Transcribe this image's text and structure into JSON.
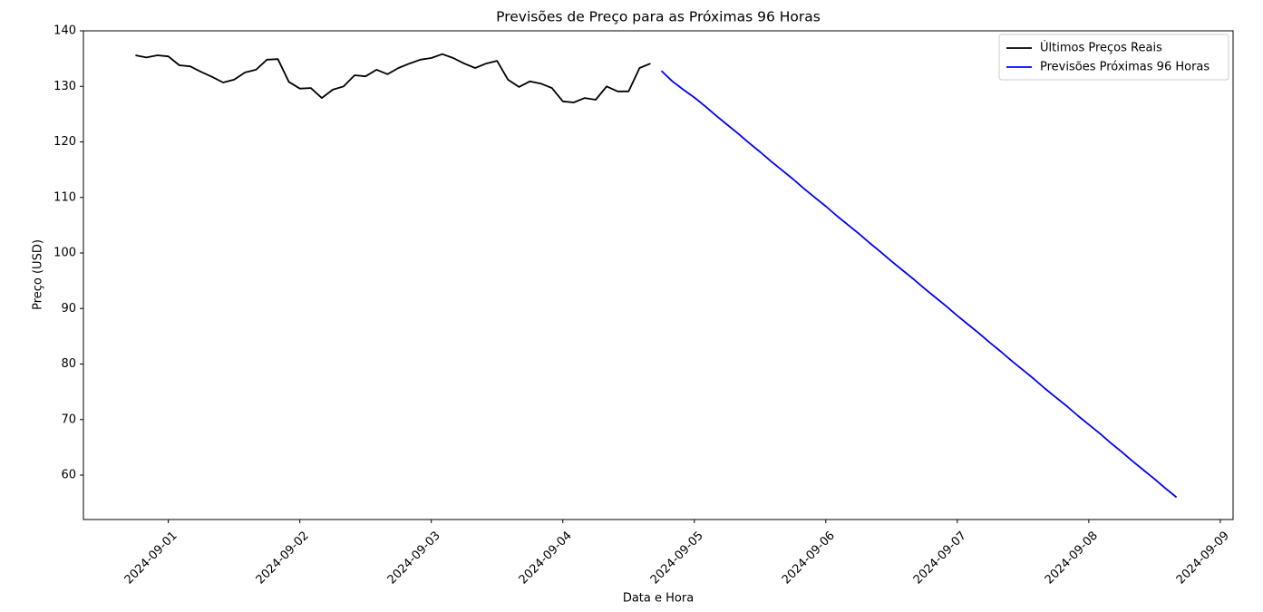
{
  "chart_data": {
    "type": "line",
    "title": "Previsões de Preço para as Próximas 96 Horas",
    "x_label": "Data e Hora",
    "y_label": "Preço (USD)",
    "series": [
      {
        "name": "Últimos Preços Reais",
        "color": "#000000",
        "x": [
          "2024-08-31T18:00",
          "2024-08-31T20:00",
          "2024-08-31T22:00",
          "2024-09-01T00:00",
          "2024-09-01T02:00",
          "2024-09-01T04:00",
          "2024-09-01T06:00",
          "2024-09-01T08:00",
          "2024-09-01T10:00",
          "2024-09-01T12:00",
          "2024-09-01T14:00",
          "2024-09-01T16:00",
          "2024-09-01T18:00",
          "2024-09-01T20:00",
          "2024-09-01T22:00",
          "2024-09-02T00:00",
          "2024-09-02T02:00",
          "2024-09-02T04:00",
          "2024-09-02T06:00",
          "2024-09-02T08:00",
          "2024-09-02T10:00",
          "2024-09-02T12:00",
          "2024-09-02T14:00",
          "2024-09-02T16:00",
          "2024-09-02T18:00",
          "2024-09-02T20:00",
          "2024-09-02T22:00",
          "2024-09-03T00:00",
          "2024-09-03T02:00",
          "2024-09-03T04:00",
          "2024-09-03T06:00",
          "2024-09-03T08:00",
          "2024-09-03T10:00",
          "2024-09-03T12:00",
          "2024-09-03T14:00",
          "2024-09-03T16:00",
          "2024-09-03T18:00",
          "2024-09-03T20:00",
          "2024-09-03T22:00",
          "2024-09-04T00:00",
          "2024-09-04T02:00",
          "2024-09-04T04:00",
          "2024-09-04T06:00",
          "2024-09-04T08:00",
          "2024-09-04T10:00",
          "2024-09-04T12:00",
          "2024-09-04T14:00",
          "2024-09-04T16:00"
        ],
        "values": [
          135.6,
          135.2,
          135.6,
          135.4,
          133.8,
          133.6,
          132.6,
          131.7,
          130.7,
          131.2,
          132.5,
          133.0,
          134.8,
          134.9,
          130.8,
          129.6,
          129.7,
          127.9,
          129.4,
          130.0,
          132.0,
          131.8,
          133.0,
          132.2,
          133.3,
          134.1,
          134.8,
          135.1,
          135.8,
          135.1,
          134.1,
          133.3,
          134.1,
          134.6,
          131.2,
          129.9,
          130.9,
          130.5,
          129.7,
          127.3,
          127.1,
          127.9,
          127.6,
          130.0,
          129.1,
          129.1,
          133.3,
          134.1
        ]
      },
      {
        "name": "Previsões Próximas 96 Horas",
        "color": "#0000ff",
        "x": [
          "2024-09-04T18:00",
          "2024-09-04T20:00",
          "2024-09-04T22:00",
          "2024-09-05T00:00",
          "2024-09-05T02:00",
          "2024-09-05T04:00",
          "2024-09-05T06:00",
          "2024-09-05T08:00",
          "2024-09-05T10:00",
          "2024-09-05T12:00",
          "2024-09-05T14:00",
          "2024-09-05T16:00",
          "2024-09-05T18:00",
          "2024-09-05T20:00",
          "2024-09-05T22:00",
          "2024-09-06T00:00",
          "2024-09-06T02:00",
          "2024-09-06T04:00",
          "2024-09-06T06:00",
          "2024-09-06T08:00",
          "2024-09-06T10:00",
          "2024-09-06T12:00",
          "2024-09-06T14:00",
          "2024-09-06T16:00",
          "2024-09-06T18:00",
          "2024-09-06T20:00",
          "2024-09-06T22:00",
          "2024-09-07T00:00",
          "2024-09-07T02:00",
          "2024-09-07T04:00",
          "2024-09-07T06:00",
          "2024-09-07T08:00",
          "2024-09-07T10:00",
          "2024-09-07T12:00",
          "2024-09-07T14:00",
          "2024-09-07T16:00",
          "2024-09-07T18:00",
          "2024-09-07T20:00",
          "2024-09-07T22:00",
          "2024-09-08T00:00",
          "2024-09-08T02:00",
          "2024-09-08T04:00",
          "2024-09-08T06:00",
          "2024-09-08T08:00",
          "2024-09-08T10:00",
          "2024-09-08T12:00",
          "2024-09-08T14:00",
          "2024-09-08T16:00"
        ],
        "values": [
          132.8,
          130.9,
          129.4,
          128.0,
          126.4,
          124.7,
          123.1,
          121.5,
          119.8,
          118.2,
          116.5,
          114.9,
          113.3,
          111.6,
          110.0,
          108.4,
          106.7,
          105.1,
          103.5,
          101.8,
          100.2,
          98.5,
          96.9,
          95.3,
          93.6,
          92.0,
          90.4,
          88.7,
          87.1,
          85.5,
          83.8,
          82.2,
          80.5,
          78.9,
          77.3,
          75.6,
          74.0,
          72.4,
          70.7,
          69.1,
          67.5,
          65.8,
          64.2,
          62.5,
          60.9,
          59.3,
          57.6,
          56.0
        ]
      }
    ],
    "xlim": [
      "2024-08-31T08:30",
      "2024-09-09T02:20"
    ],
    "xticks": [
      "2024-09-01",
      "2024-09-02",
      "2024-09-03",
      "2024-09-04",
      "2024-09-05",
      "2024-09-06",
      "2024-09-07",
      "2024-09-08",
      "2024-09-09"
    ],
    "ylim": [
      52,
      140
    ],
    "yticks": [
      60,
      70,
      80,
      90,
      100,
      110,
      120,
      130,
      140
    ],
    "legend": "upper right"
  }
}
